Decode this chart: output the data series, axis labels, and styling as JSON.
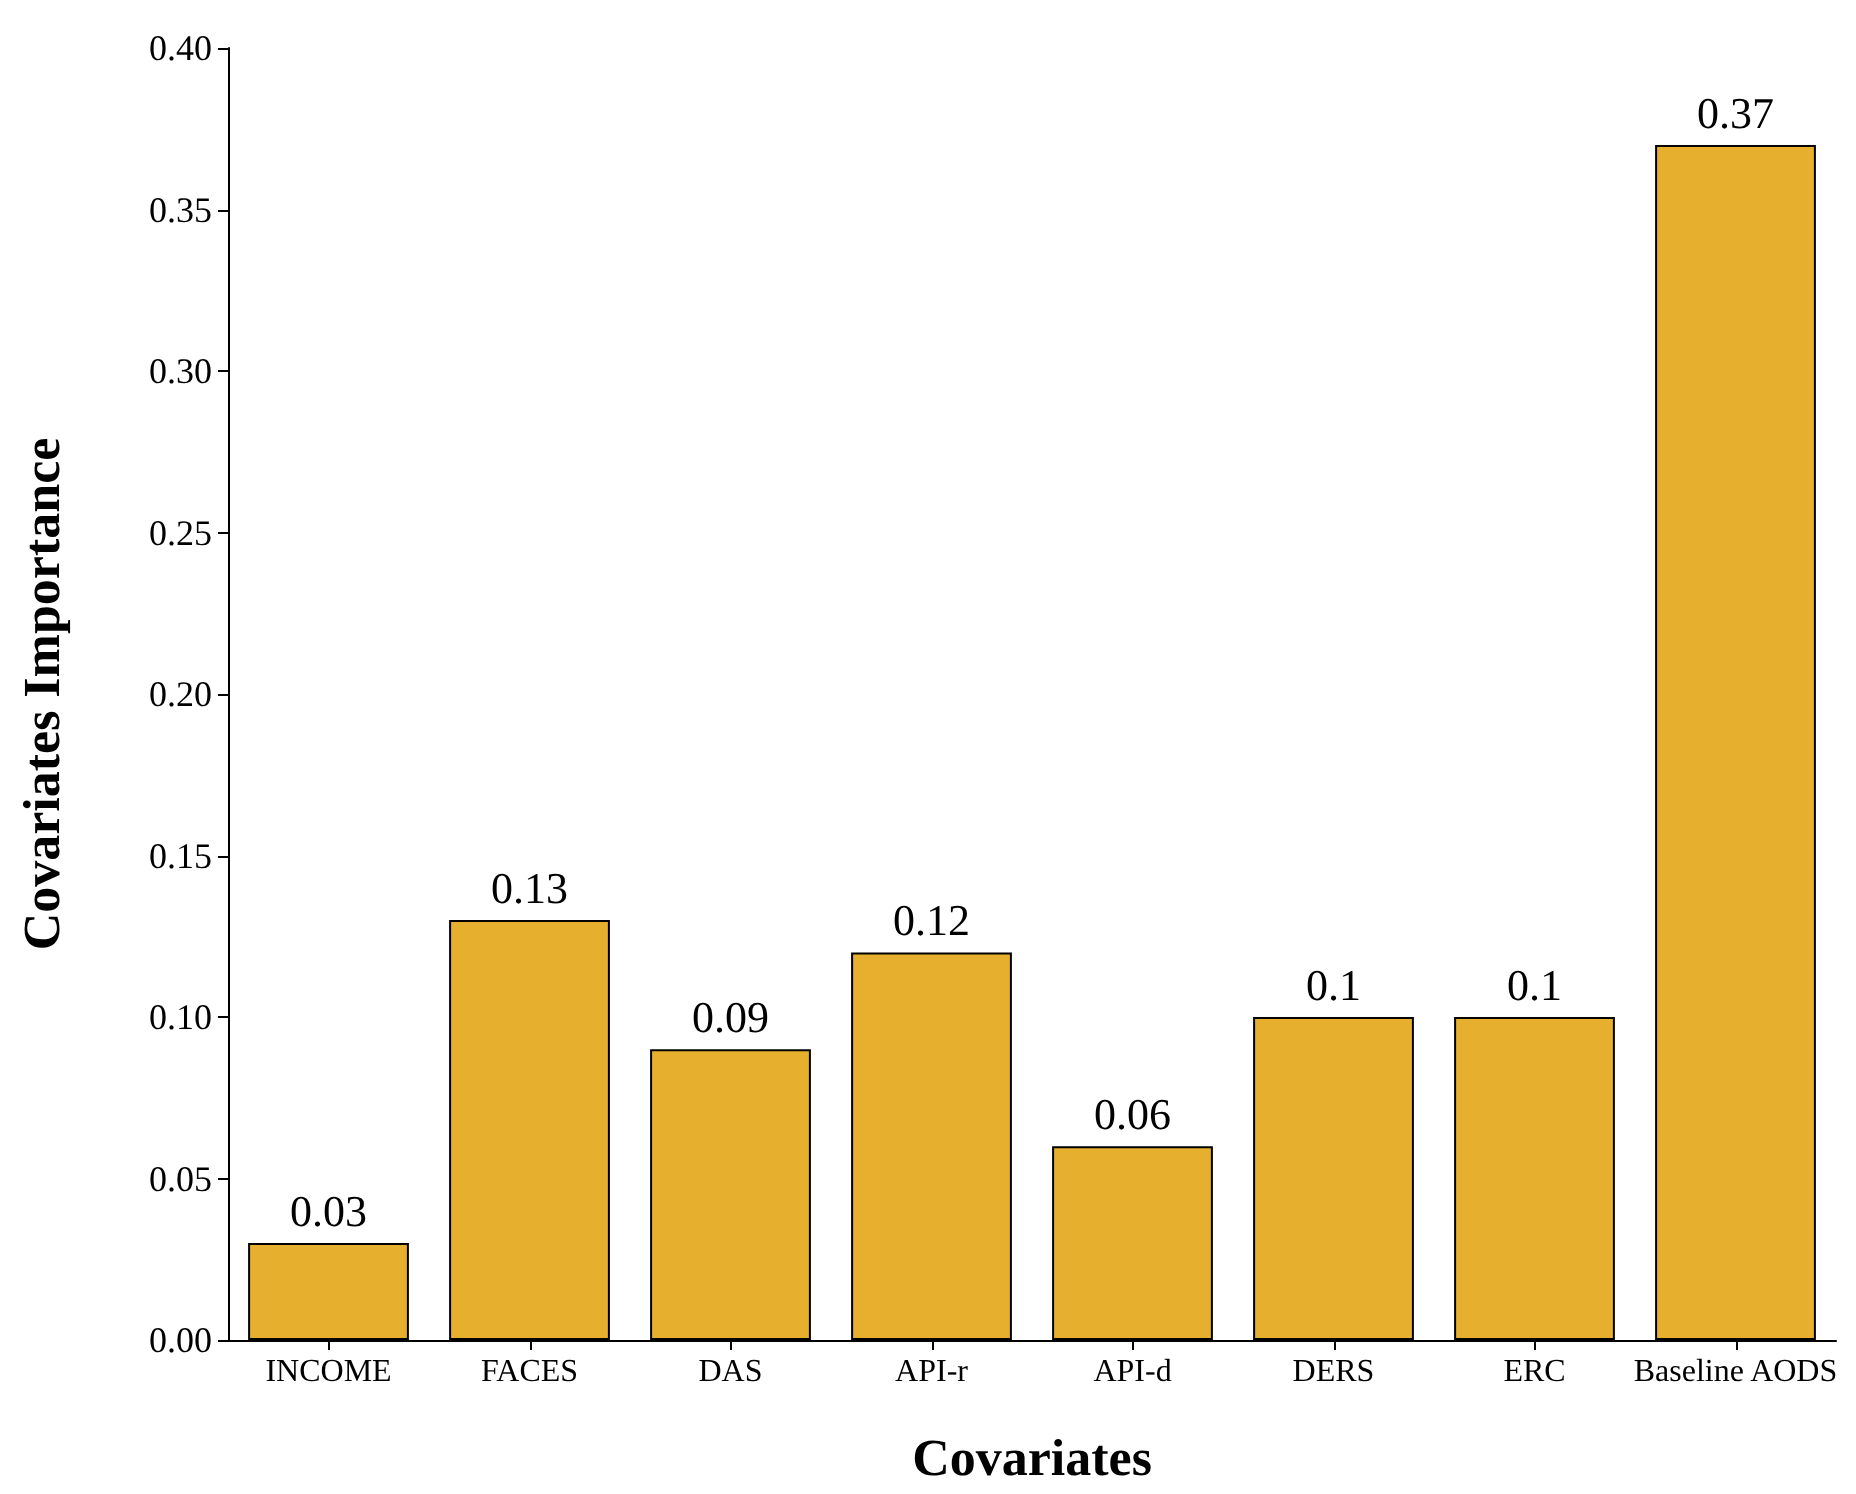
{
  "chart_data": {
    "type": "bar",
    "xlabel": "Covariates",
    "ylabel": "Covariates Importance",
    "categories": [
      "INCOME",
      "FACES",
      "DAS",
      "API-r",
      "API-d",
      "DERS",
      "ERC",
      "Baseline AODS"
    ],
    "values": [
      0.03,
      0.13,
      0.09,
      0.12,
      0.06,
      0.1,
      0.1,
      0.37
    ],
    "color": "#e6b02e",
    "ylim": [
      0,
      0.4
    ],
    "yticks": [
      {
        "value": 0,
        "label": "0.00"
      },
      {
        "value": 0.05,
        "label": "0.05"
      },
      {
        "value": 0.1,
        "label": "0.10"
      },
      {
        "value": 0.15,
        "label": "0.15"
      },
      {
        "value": 0.2,
        "label": "0.20"
      },
      {
        "value": 0.25,
        "label": "0.25"
      },
      {
        "value": 0.3,
        "label": "0.30"
      },
      {
        "value": 0.35,
        "label": "0.35"
      },
      {
        "value": 0.4,
        "label": "0.40"
      }
    ],
    "data_labels": true,
    "grid": false
  }
}
